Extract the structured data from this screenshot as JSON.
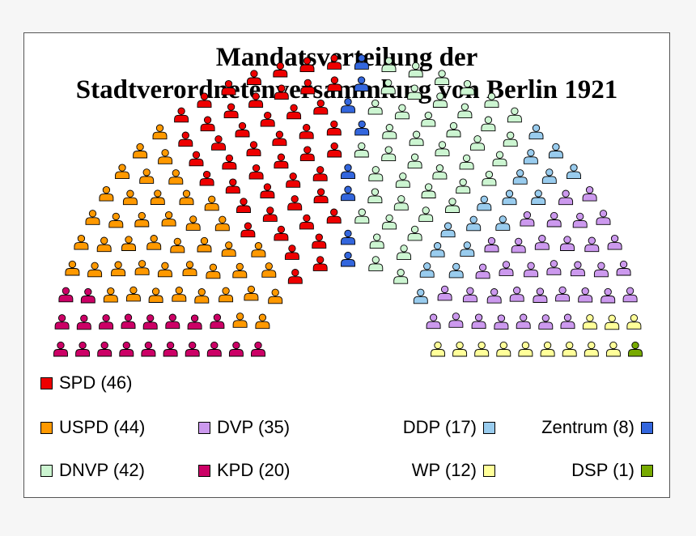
{
  "chart_data": {
    "type": "parliament",
    "title_lines": [
      "Mandatsverteilung der",
      "Stadtverordnetenversammlung von Berlin 1921"
    ],
    "total_seats": 225,
    "parties": [
      {
        "key": "kpd",
        "name": "KPD",
        "seats": 20,
        "color": "#cc0066"
      },
      {
        "key": "uspd",
        "name": "USPD",
        "seats": 44,
        "color": "#ff9900"
      },
      {
        "key": "spd",
        "name": "SPD",
        "seats": 46,
        "color": "#ee0000"
      },
      {
        "key": "zentrum",
        "name": "Zentrum",
        "seats": 8,
        "color": "#3366dd"
      },
      {
        "key": "dnvp",
        "name": "DNVP",
        "seats": 42,
        "color": "#ccf5d1"
      },
      {
        "key": "ddp",
        "name": "DDP",
        "seats": 17,
        "color": "#99ccee"
      },
      {
        "key": "dvp",
        "name": "DVP",
        "seats": 35,
        "color": "#cc99ee"
      },
      {
        "key": "wp",
        "name": "WP",
        "seats": 12,
        "color": "#ffff99"
      },
      {
        "key": "dsp",
        "name": "DSP",
        "seats": 1,
        "color": "#77aa00"
      }
    ],
    "legend": [
      {
        "party": "spd",
        "label": "SPD (46)",
        "align": "left"
      },
      {
        "party": "uspd",
        "label": "USPD (44)",
        "align": "left"
      },
      {
        "party": "dvp",
        "label": "DVP (35)",
        "align": "left"
      },
      {
        "party": "ddp",
        "label": "DDP (17)",
        "align": "right"
      },
      {
        "party": "zentrum",
        "label": "Zentrum (8)",
        "align": "right"
      },
      {
        "party": "dnvp",
        "label": "DNVP (42)",
        "align": "left"
      },
      {
        "party": "kpd",
        "label": "KPD (20)",
        "align": "left"
      },
      {
        "party": "wp",
        "label": "WP (12)",
        "align": "right"
      },
      {
        "party": "dsp",
        "label": "DSP (1)",
        "align": "right"
      }
    ]
  }
}
